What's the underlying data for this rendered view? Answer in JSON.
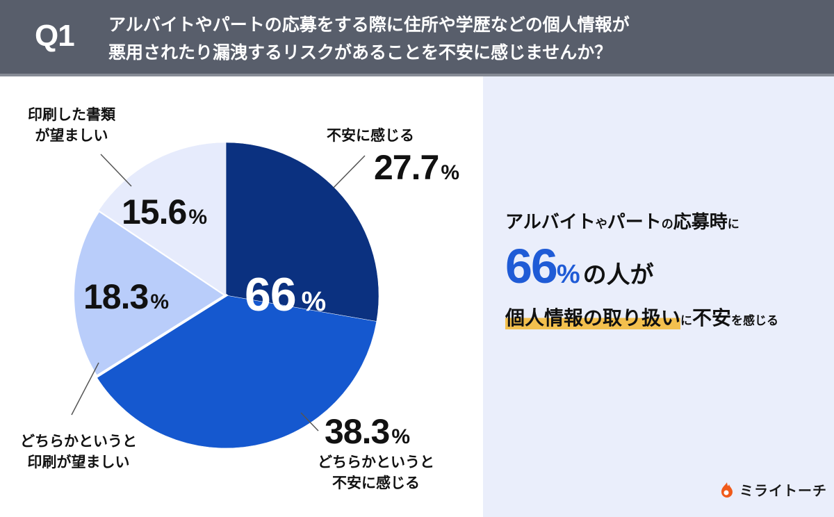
{
  "header": {
    "question_label": "Q1",
    "question_text": "アルバイトやパートの応募をする際に住所や学歴などの個人情報が\n悪用されたり漏洩するリスクがあることを不安に感じませんか？"
  },
  "chart_data": {
    "type": "pie",
    "title": "アルバイトやパートの応募をする際に住所や学歴などの個人情報が悪用されたり漏洩するリスクがあることを不安に感じませんか？",
    "categories": [
      "不安に感じる",
      "どちらかというと不安に感じる",
      "どちらかというと印刷が望ましい",
      "印刷した書類が望ましい"
    ],
    "values": [
      27.7,
      38.3,
      18.3,
      15.6
    ],
    "unit": "%",
    "colors": [
      "#0b3180",
      "#1558cf",
      "#b9cdfa",
      "#e6ebfc"
    ],
    "start_angle": "12 o'clock, clockwise",
    "annotations": [
      {
        "text": "66%",
        "note": "combined 不安に感じる + どちらかというと不安に感じる"
      }
    ]
  },
  "slices": [
    {
      "label": "不安に感じる",
      "pct": "27.7",
      "unit": "%"
    },
    {
      "label": "どちらかというと\n不安に感じる",
      "pct": "38.3",
      "unit": "%"
    },
    {
      "label": "どちらかというと\n印刷が望ましい",
      "pct": "18.3",
      "unit": "%"
    },
    {
      "label": "印刷した書類\nが望ましい",
      "pct": "15.6",
      "unit": "%"
    }
  ],
  "combined": {
    "pct": "66",
    "unit": "%"
  },
  "summary": {
    "line1_a": "アルバイト",
    "line1_b": "や",
    "line1_c": "パート",
    "line1_d": "の",
    "line1_e": "応募時",
    "line1_f": "に",
    "line2_num": "66",
    "line2_unit": "%",
    "line2_rest": "の人が",
    "line3_highlight": "個人情報の取り扱い",
    "line3_a": "に",
    "line3_b": "不安",
    "line3_c": "を感じる"
  },
  "brand": {
    "name": "ミライトーチ",
    "color": "#f05a1a"
  }
}
